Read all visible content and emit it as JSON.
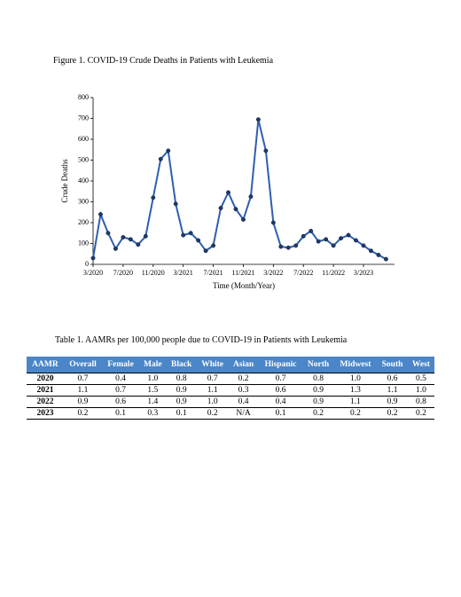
{
  "figure_caption": "Figure 1. COVID-19 Crude Deaths in Patients with Leukemia",
  "chart_data": {
    "type": "line",
    "y_label": "Crude Deaths",
    "x_label": "Time (Month/Year)",
    "categories": [
      "3/2020",
      null,
      null,
      null,
      "7/2020",
      null,
      null,
      null,
      "11/2020",
      null,
      null,
      null,
      "3/2021",
      null,
      null,
      null,
      "7/2021",
      null,
      null,
      null,
      "11/2021",
      null,
      null,
      null,
      "3/2022",
      null,
      null,
      null,
      "7/2022",
      null,
      null,
      null,
      "11/2022",
      null,
      null,
      null,
      "3/2023",
      null,
      null,
      null
    ],
    "values": [
      30,
      240,
      150,
      75,
      130,
      120,
      95,
      135,
      320,
      505,
      545,
      290,
      140,
      150,
      115,
      65,
      90,
      270,
      345,
      265,
      215,
      325,
      695,
      545,
      200,
      85,
      80,
      90,
      135,
      160,
      110,
      120,
      90,
      125,
      140,
      115,
      90,
      65,
      45,
      25
    ],
    "color": "#2e5fb0",
    "marker_color": "#1f3a6b",
    "ylim": [
      0,
      800
    ],
    "yticks": [
      0,
      100,
      200,
      300,
      400,
      500,
      600,
      700,
      800
    ],
    "grid": false
  },
  "table_caption": "Table 1. AAMRs per 100,000 people due to COVID-19 in Patients with Leukemia",
  "table": {
    "header": [
      "AAMR",
      "Overall",
      "Female",
      "Male",
      "Black",
      "White",
      "Asian",
      "Hispanic",
      "North",
      "Midwest",
      "South",
      "West"
    ],
    "rows": [
      [
        "2020",
        "0.7",
        "0.4",
        "1.0",
        "0.8",
        "0.7",
        "0.2",
        "0.7",
        "0.8",
        "1.0",
        "0.6",
        "0.5"
      ],
      [
        "2021",
        "1.1",
        "0.7",
        "1.5",
        "0.9",
        "1.1",
        "0.3",
        "0.6",
        "0.9",
        "1.3",
        "1.1",
        "1.0"
      ],
      [
        "2022",
        "0.9",
        "0.6",
        "1.4",
        "0.9",
        "1.0",
        "0.4",
        "0.4",
        "0.9",
        "1.1",
        "0.9",
        "0.8"
      ],
      [
        "2023",
        "0.2",
        "0.1",
        "0.3",
        "0.1",
        "0.2",
        "N/A",
        "0.1",
        "0.2",
        "0.2",
        "0.2",
        "0.2"
      ]
    ]
  }
}
